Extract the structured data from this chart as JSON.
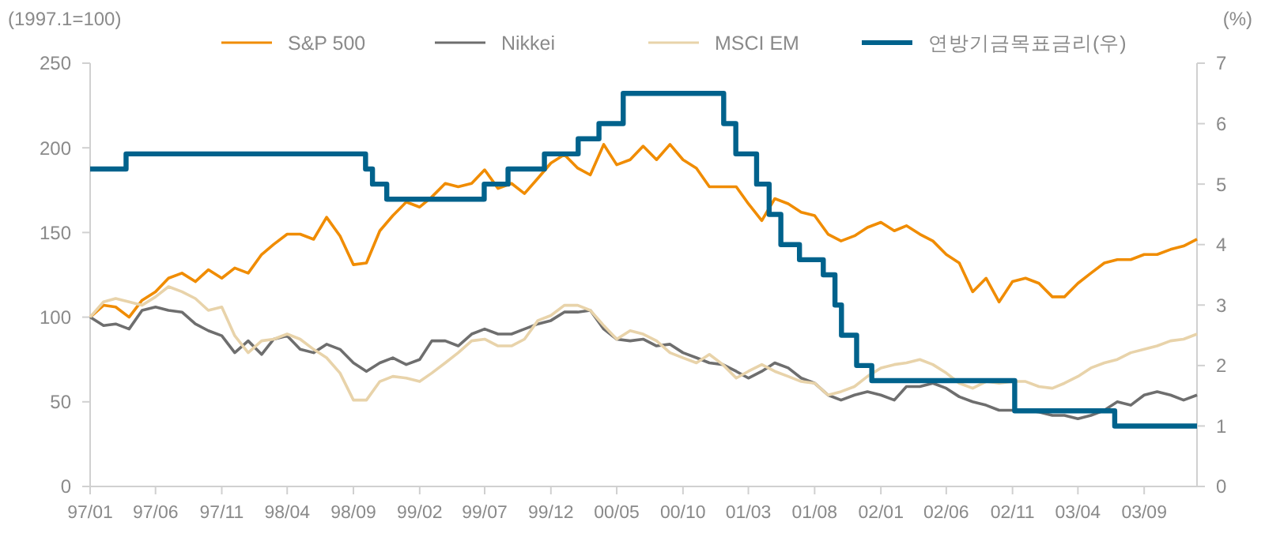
{
  "chart_data": {
    "type": "line",
    "ylabel": "(1997.1=100)",
    "y2label": "(%)",
    "x": [
      "1997-01",
      "1997-02",
      "1997-03",
      "1997-04",
      "1997-05",
      "1997-06",
      "1997-07",
      "1997-08",
      "1997-09",
      "1997-10",
      "1997-11",
      "1997-12",
      "1998-01",
      "1998-02",
      "1998-03",
      "1998-04",
      "1998-05",
      "1998-06",
      "1998-07",
      "1998-08",
      "1998-09",
      "1998-10",
      "1998-11",
      "1998-12",
      "1999-01",
      "1999-02",
      "1999-03",
      "1999-04",
      "1999-05",
      "1999-06",
      "1999-07",
      "1999-08",
      "1999-09",
      "1999-10",
      "1999-11",
      "1999-12",
      "2000-01",
      "2000-02",
      "2000-03",
      "2000-04",
      "2000-05",
      "2000-06",
      "2000-07",
      "2000-08",
      "2000-09",
      "2000-10",
      "2000-11",
      "2000-12",
      "2001-01",
      "2001-02",
      "2001-03",
      "2001-04",
      "2001-05",
      "2001-06",
      "2001-07",
      "2001-08",
      "2001-09",
      "2001-10",
      "2001-11",
      "2001-12",
      "2002-01",
      "2002-02",
      "2002-03",
      "2002-04",
      "2002-05",
      "2002-06",
      "2002-07",
      "2002-08",
      "2002-09",
      "2002-10",
      "2002-11",
      "2002-12",
      "2003-01",
      "2003-02",
      "2003-03",
      "2003-04",
      "2003-05",
      "2003-06",
      "2003-07",
      "2003-08",
      "2003-09",
      "2003-10",
      "2003-11",
      "2003-12",
      "2004-01"
    ],
    "series": [
      {
        "name": "S&P 500",
        "color": "#f08c00",
        "values": [
          100,
          107,
          106,
          100,
          110,
          115,
          123,
          126,
          121,
          128,
          123,
          129,
          126,
          137,
          143,
          149,
          149,
          146,
          159,
          148,
          131,
          132,
          151,
          160,
          168,
          165,
          171,
          179,
          177,
          179,
          187,
          176,
          179,
          173,
          182,
          191,
          196,
          188,
          184,
          202,
          190,
          193,
          201,
          193,
          202,
          193,
          188,
          177,
          177,
          177,
          167,
          157,
          170,
          167,
          162,
          160,
          149,
          145,
          148,
          153,
          156,
          151,
          154,
          149,
          145,
          137,
          132,
          115,
          123,
          109,
          121,
          123,
          120,
          112,
          112,
          120,
          126,
          132,
          134,
          134,
          137,
          137,
          140,
          142,
          146
        ]
      },
      {
        "name": "Nikkei",
        "color": "#6e6e6e",
        "values": [
          100,
          95,
          96,
          93,
          104,
          106,
          104,
          103,
          96,
          92,
          89,
          79,
          86,
          78,
          87,
          89,
          81,
          79,
          84,
          81,
          73,
          68,
          73,
          76,
          72,
          75,
          86,
          86,
          83,
          90,
          93,
          90,
          90,
          93,
          96,
          98,
          103,
          103,
          104,
          93,
          87,
          86,
          87,
          83,
          84,
          79,
          76,
          73,
          72,
          68,
          64,
          68,
          73,
          70,
          64,
          61,
          54,
          51,
          54,
          56,
          54,
          51,
          59,
          59,
          61,
          58,
          53,
          50,
          48,
          45,
          45,
          45,
          44,
          42,
          42,
          40,
          42,
          45,
          50,
          48,
          54,
          56,
          54,
          51,
          54
        ]
      },
      {
        "name": "MSCI EM",
        "color": "#e8d3aa",
        "values": [
          100,
          109,
          111,
          109,
          107,
          112,
          118,
          115,
          111,
          104,
          106,
          89,
          79,
          86,
          87,
          90,
          87,
          81,
          76,
          67,
          51,
          51,
          62,
          65,
          64,
          62,
          67,
          73,
          79,
          86,
          87,
          83,
          83,
          87,
          98,
          101,
          107,
          107,
          104,
          95,
          87,
          92,
          90,
          86,
          79,
          76,
          73,
          78,
          72,
          64,
          68,
          72,
          68,
          65,
          62,
          61,
          54,
          56,
          59,
          65,
          70,
          72,
          73,
          75,
          72,
          67,
          61,
          58,
          62,
          61,
          62,
          62,
          59,
          58,
          61,
          65,
          70,
          73,
          75,
          79,
          81,
          83,
          86,
          87,
          90
        ]
      },
      {
        "name": "연방기금목표금리(우)",
        "color": "#00628c",
        "type": "step",
        "axis": "y2",
        "x": [
          "1997-01",
          "1997-03-25",
          "1998-09-29",
          "1998-10-15",
          "1998-11-17",
          "1999-06-30",
          "1999-08-24",
          "1999-11-16",
          "2000-02-02",
          "2000-03-21",
          "2000-05-16",
          "2001-01-03",
          "2001-01-31",
          "2001-03-20",
          "2001-04-18",
          "2001-05-15",
          "2001-06-27",
          "2001-08-21",
          "2001-09-17",
          "2001-10-02",
          "2001-11-06",
          "2001-12-11",
          "2002-11-06",
          "2003-06-25",
          "2004-01"
        ],
        "values": [
          5.25,
          5.5,
          5.25,
          5.0,
          4.75,
          5.0,
          5.25,
          5.5,
          5.75,
          6.0,
          6.5,
          6.0,
          5.5,
          5.0,
          4.5,
          4.0,
          3.75,
          3.5,
          3.0,
          2.5,
          2.0,
          1.75,
          1.25,
          1.0,
          1.0
        ]
      }
    ],
    "xlim": [
      "1997-01",
      "2004-01"
    ],
    "xticks": [
      {
        "value": "1997-01",
        "label": "97/01"
      },
      {
        "value": "1997-06",
        "label": "97/06"
      },
      {
        "value": "1997-11",
        "label": "97/11"
      },
      {
        "value": "1998-04",
        "label": "98/04"
      },
      {
        "value": "1998-09",
        "label": "98/09"
      },
      {
        "value": "1999-02",
        "label": "99/02"
      },
      {
        "value": "1999-07",
        "label": "99/07"
      },
      {
        "value": "1999-12",
        "label": "99/12"
      },
      {
        "value": "2000-05",
        "label": "00/05"
      },
      {
        "value": "2000-10",
        "label": "00/10"
      },
      {
        "value": "2001-03",
        "label": "01/03"
      },
      {
        "value": "2001-08",
        "label": "01/08"
      },
      {
        "value": "2002-01",
        "label": "02/01"
      },
      {
        "value": "2002-06",
        "label": "02/06"
      },
      {
        "value": "2002-11",
        "label": "02/11"
      },
      {
        "value": "2003-04",
        "label": "03/04"
      },
      {
        "value": "2003-09",
        "label": "03/09"
      }
    ],
    "ylim": [
      0,
      250
    ],
    "yticks": [
      0,
      50,
      100,
      150,
      200,
      250
    ],
    "y2lim": [
      0,
      7
    ],
    "y2ticks": [
      0,
      1,
      2,
      3,
      4,
      5,
      6,
      7
    ],
    "legend": "top",
    "grid": false
  }
}
